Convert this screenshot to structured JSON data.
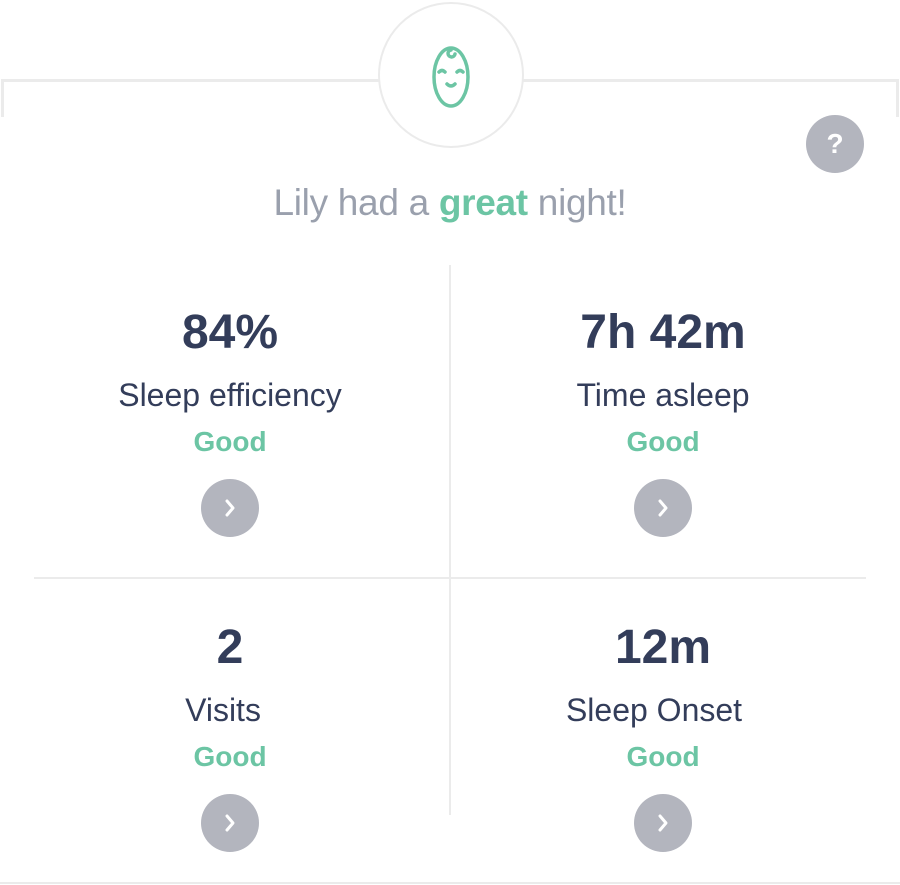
{
  "header": {
    "icon": "baby-face-icon",
    "help_label": "?",
    "headline_prefix": "Lily had a ",
    "headline_highlight": "great",
    "headline_suffix": " night!"
  },
  "colors": {
    "accent": "#6cc5a4",
    "text": "#333d5a",
    "button": "#b3b5be"
  },
  "metrics": [
    {
      "value": "84%",
      "label": "Sleep efficiency",
      "rating": "Good"
    },
    {
      "value": "7h 42m",
      "label": "Time asleep",
      "rating": "Good"
    },
    {
      "value": "2",
      "label": "Visits",
      "rating": "Good"
    },
    {
      "value": "12m",
      "label": "Sleep Onset",
      "rating": "Good"
    }
  ]
}
